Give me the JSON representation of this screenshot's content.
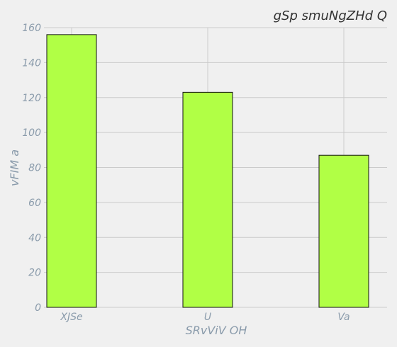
{
  "chart_data": {
    "type": "bar",
    "title": "gSp smuNgZHd Q",
    "xlabel": "SRvViV OH",
    "ylabel": "vFIM a",
    "categories": [
      "XJSe",
      "U",
      "Va"
    ],
    "values": [
      156,
      123,
      87
    ],
    "ylim": [
      0,
      160
    ],
    "yticks": [
      0,
      20,
      40,
      60,
      80,
      100,
      120,
      140,
      160
    ],
    "grid": true,
    "bar_color": "#b1ff45"
  }
}
